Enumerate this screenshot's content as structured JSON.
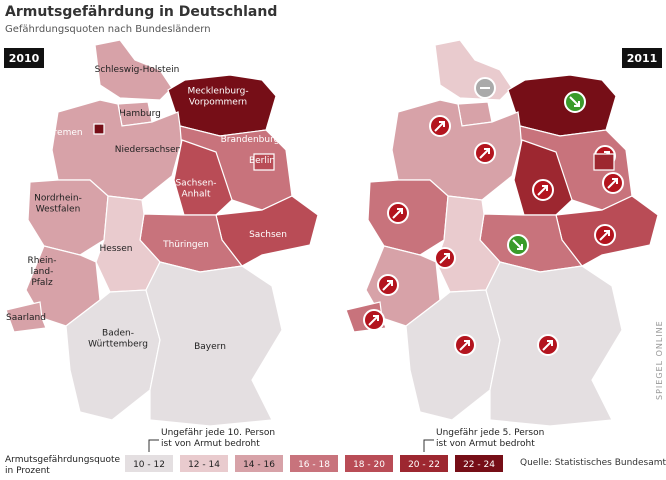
{
  "header": {
    "title": "Armutsgefährdung in Deutschland",
    "subtitle": "Gefährdungsquoten nach Bundesländern"
  },
  "legend": {
    "label": [
      "Armutsgefährdungsquote",
      "in Prozent"
    ],
    "bins": [
      {
        "label": "10 - 12",
        "color": "#e4dfe1"
      },
      {
        "label": "12 - 14",
        "color": "#e9cbce"
      },
      {
        "label": "14 - 16",
        "color": "#d7a2a8"
      },
      {
        "label": "16 - 18",
        "color": "#c8737c"
      },
      {
        "label": "18 - 20",
        "color": "#b94c56"
      },
      {
        "label": "20 - 22",
        "color": "#9d2730"
      },
      {
        "label": "22 - 24",
        "color": "#760e17"
      }
    ],
    "note_left": [
      "Ungefähr jede 10. Person",
      "ist von Armut bedroht"
    ],
    "note_right": [
      "Ungefähr jede 5. Person",
      "ist von Armut bedroht"
    ]
  },
  "source": "Quelle: Statistisches Bundesamt",
  "watermark": "SPIEGEL ONLINE",
  "maps": [
    {
      "year": "2010",
      "states": [
        {
          "label": [
            "Schleswig-Holstein"
          ],
          "color": "#d7a2a8"
        },
        {
          "label": [
            "Mecklenburg-",
            "Vorpommern"
          ],
          "color": "#760e17"
        },
        {
          "label": [
            "Hamburg"
          ],
          "color": "#d7a2a8"
        },
        {
          "label": [
            "Niedersachsen"
          ],
          "color": "#d7a2a8"
        },
        {
          "label": [
            "Bremen"
          ],
          "color": "#760e17"
        },
        {
          "label": [
            "Brandenburg"
          ],
          "color": "#c8737c"
        },
        {
          "label": [
            "Berlin"
          ],
          "color": "#b94c56"
        },
        {
          "label": [
            "Sachsen-",
            "Anhalt"
          ],
          "color": "#b94c56"
        },
        {
          "label": [
            "Sachsen"
          ],
          "color": "#b94c56"
        },
        {
          "label": [
            "Thüringen"
          ],
          "color": "#c8737c"
        },
        {
          "label": [
            "Nordrhein-",
            "Westfalen"
          ],
          "color": "#d7a2a8"
        },
        {
          "label": [
            "Hessen"
          ],
          "color": "#e9cbce"
        },
        {
          "label": [
            "Rhein-",
            "land-",
            "Pfalz"
          ],
          "color": "#d7a2a8"
        },
        {
          "label": [
            "Saarland"
          ],
          "color": "#d7a2a8"
        },
        {
          "label": [
            "Baden-",
            "Württemberg"
          ],
          "color": "#e4dfe1"
        },
        {
          "label": [
            "Bayern"
          ],
          "color": "#e4dfe1"
        }
      ]
    },
    {
      "year": "2011",
      "states": [
        {
          "color": "#e9cbce",
          "trend": "same"
        },
        {
          "color": "#760e17",
          "trend": "down"
        },
        {
          "color": "#d7a2a8"
        },
        {
          "color": "#d7a2a8",
          "trend": "up"
        },
        {
          "color": "#760e17",
          "trend": "up"
        },
        {
          "color": "#c8737c",
          "trend": "up"
        },
        {
          "color": "#9d2730",
          "trend": "up"
        },
        {
          "color": "#9d2730",
          "trend": "up"
        },
        {
          "color": "#b94c56",
          "trend": "up"
        },
        {
          "color": "#c8737c",
          "trend": "down"
        },
        {
          "color": "#c8737c",
          "trend": "up"
        },
        {
          "color": "#e9cbce",
          "trend": "up"
        },
        {
          "color": "#d7a2a8",
          "trend": "up"
        },
        {
          "color": "#c8737c",
          "trend": "up"
        },
        {
          "color": "#e4dfe1",
          "trend": "up"
        },
        {
          "color": "#e4dfe1",
          "trend": "up"
        }
      ]
    }
  ]
}
